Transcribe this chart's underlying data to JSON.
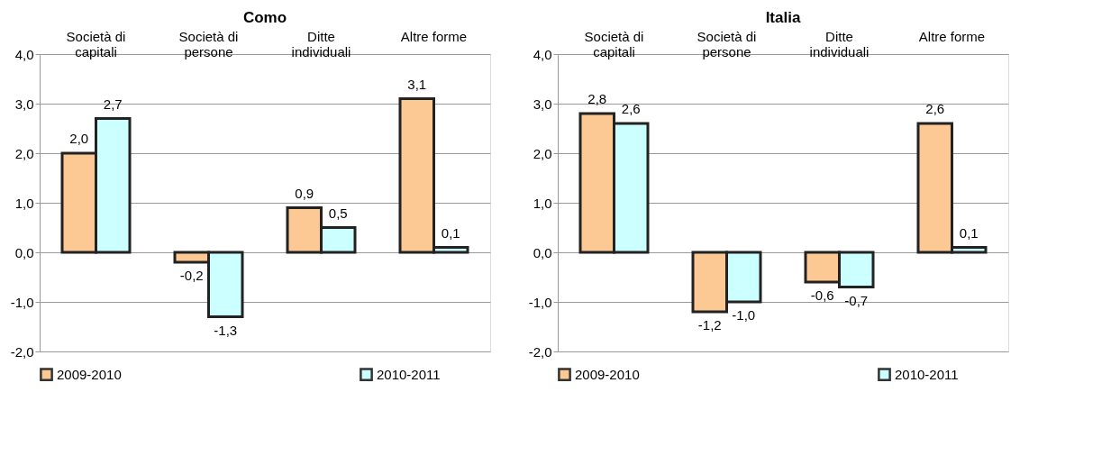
{
  "chart_data": [
    {
      "type": "bar",
      "title": "Como",
      "categories": [
        "Società di\ncapitali",
        "Società di\npersone",
        "Ditte\nindividuali",
        "Altre forme"
      ],
      "series": [
        {
          "name": "2009-2010",
          "color": "#fcc995",
          "values": [
            2.0,
            -0.2,
            0.9,
            3.1
          ],
          "value_labels": [
            "2,0",
            "-0,2",
            "0,9",
            "3,1"
          ]
        },
        {
          "name": "2010-2011",
          "color": "#ccffff",
          "values": [
            2.7,
            -1.3,
            0.5,
            0.1
          ],
          "value_labels": [
            "2,7",
            "-1,3",
            "0,5",
            "0,1"
          ]
        }
      ],
      "ylim": [
        -2,
        4
      ],
      "yticks": [
        {
          "value": -2,
          "label": "-2,0"
        },
        {
          "value": -1,
          "label": "-1,0"
        },
        {
          "value": 0,
          "label": "0,0"
        },
        {
          "value": 1,
          "label": "1,0"
        },
        {
          "value": 2,
          "label": "2,0"
        },
        {
          "value": 3,
          "label": "3,0"
        },
        {
          "value": 4,
          "label": "4,0"
        }
      ],
      "grid": "y",
      "legend": "bottom"
    },
    {
      "type": "bar",
      "title": "Italia",
      "categories": [
        "Società di\ncapitali",
        "Società di\npersone",
        "Ditte\nindividuali",
        "Altre forme"
      ],
      "series": [
        {
          "name": "2009-2010",
          "color": "#fcc995",
          "values": [
            2.8,
            -1.2,
            -0.6,
            2.6
          ],
          "value_labels": [
            "2,8",
            "-1,2",
            "-0,6",
            "2,6"
          ]
        },
        {
          "name": "2010-2011",
          "color": "#ccffff",
          "values": [
            2.6,
            -1.0,
            -0.7,
            0.1
          ],
          "value_labels": [
            "2,6",
            "-1,0",
            "-0,7",
            "0,1"
          ]
        }
      ],
      "ylim": [
        -2,
        4
      ],
      "yticks": [
        {
          "value": -2,
          "label": "-2,0"
        },
        {
          "value": -1,
          "label": "-1,0"
        },
        {
          "value": 0,
          "label": "0,0"
        },
        {
          "value": 1,
          "label": "1,0"
        },
        {
          "value": 2,
          "label": "2,0"
        },
        {
          "value": 3,
          "label": "3,0"
        },
        {
          "value": 4,
          "label": "4,0"
        }
      ],
      "grid": "y",
      "legend": "bottom"
    }
  ]
}
